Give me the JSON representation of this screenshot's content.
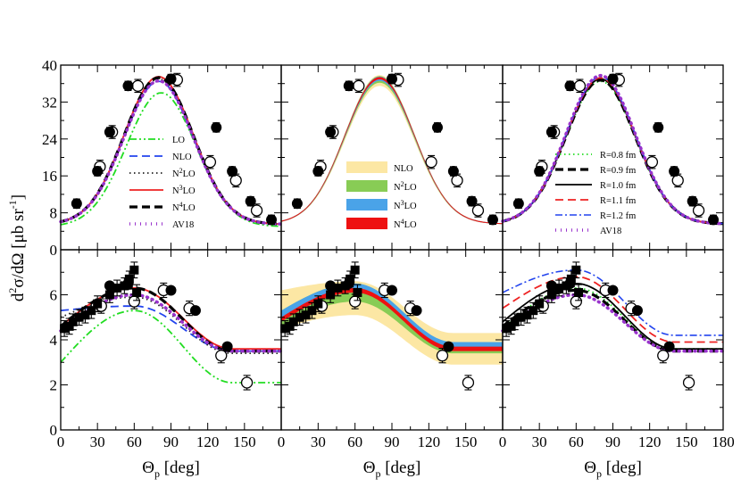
{
  "chart_data": {
    "type": "line",
    "ylabel": "d²σ/dΩ [μb sr⁻¹]",
    "ylabel_parts": {
      "d": "d",
      "sup2": "2",
      "body": "σ/dΩ [μb sr",
      "supm1": "-1",
      "close": "]"
    },
    "xlabel_parts": {
      "theta": "Θ",
      "sub": "p",
      "unit": " [deg]"
    },
    "xlim": [
      0,
      180
    ],
    "xticks": [
      0,
      30,
      60,
      90,
      120,
      150
    ],
    "xticks_last": [
      0,
      30,
      60,
      90,
      120,
      150,
      180
    ],
    "top_ylim": [
      0,
      40
    ],
    "top_yticks": [
      0,
      8,
      16,
      24,
      32,
      40
    ],
    "bottom_ylim": [
      0,
      8
    ],
    "bottom_yticks": [
      0,
      2,
      4,
      6
    ],
    "colors": {
      "LO": "#22dd22",
      "NLO": "#2244ee",
      "N2LO": "#222222",
      "N3LO": "#ee2222",
      "N4LO": "#000000",
      "AV18": "#9933cc",
      "R08": "#22dd22",
      "R09": "#000000",
      "R10": "#000000",
      "R11": "#ee2222",
      "R12": "#2244ee",
      "band_NLO": "#fce7a4",
      "band_N2LO": "#88cc55",
      "band_N3LO": "#4aa3e8",
      "band_N4LO": "#ee1111"
    },
    "legend_left": [
      {
        "key": "LO",
        "parts": [
          "LO",
          "",
          ""
        ],
        "style": "dashdotdot"
      },
      {
        "key": "NLO",
        "parts": [
          "NLO",
          "",
          ""
        ],
        "style": "dash"
      },
      {
        "key": "N2LO",
        "parts": [
          "N",
          "2",
          "LO"
        ],
        "style": "dot"
      },
      {
        "key": "N3LO",
        "parts": [
          "N",
          "3",
          "LO"
        ],
        "style": "solid"
      },
      {
        "key": "N4LO",
        "parts": [
          "N",
          "4",
          "LO"
        ],
        "style": "bolddash"
      },
      {
        "key": "AV18",
        "parts": [
          "AV18",
          "",
          ""
        ],
        "style": "bolddot"
      }
    ],
    "legend_middle": [
      {
        "key": "band_NLO",
        "parts": [
          "NLO",
          "",
          ""
        ]
      },
      {
        "key": "band_N2LO",
        "parts": [
          "N",
          "2",
          "LO"
        ]
      },
      {
        "key": "band_N3LO",
        "parts": [
          "N",
          "3",
          "LO"
        ]
      },
      {
        "key": "band_N4LO",
        "parts": [
          "N",
          "4",
          "LO"
        ]
      }
    ],
    "legend_right": [
      {
        "key": "R08",
        "label": "R=0.8 fm",
        "style": "dot"
      },
      {
        "key": "R09",
        "label": "R=0.9 fm",
        "style": "bolddash"
      },
      {
        "key": "R10",
        "label": "R=1.0 fm",
        "style": "solid"
      },
      {
        "key": "R11",
        "label": "R=1.1 fm",
        "style": "dash"
      },
      {
        "key": "R12",
        "label": "R=1.2 fm",
        "style": "dashdot"
      },
      {
        "key": "AV18",
        "label": "AV18",
        "style": "bolddot"
      }
    ],
    "data_top_filled": [
      [
        13,
        10
      ],
      [
        30,
        17
      ],
      [
        40,
        25.5
      ],
      [
        55,
        35.5
      ],
      [
        90,
        37
      ],
      [
        127,
        26.5
      ],
      [
        140,
        17
      ],
      [
        155,
        10.5
      ],
      [
        172,
        6.5
      ]
    ],
    "data_top_open": [
      [
        32,
        18
      ],
      [
        42,
        25.5
      ],
      [
        63,
        35.5
      ],
      [
        95,
        36.8
      ],
      [
        122,
        19
      ],
      [
        143,
        15
      ],
      [
        160,
        8.5
      ]
    ],
    "data_bottom_filled_circle": [
      [
        40,
        6.4
      ],
      [
        55,
        6.5
      ],
      [
        90,
        6.2
      ],
      [
        110,
        5.3
      ],
      [
        136,
        3.7
      ]
    ],
    "data_bottom_open_circle": [
      [
        33,
        5.5
      ],
      [
        60,
        5.7
      ],
      [
        84,
        6.2
      ],
      [
        105,
        5.4
      ],
      [
        131,
        3.3
      ],
      [
        152,
        2.1
      ]
    ],
    "data_bottom_squares": [
      [
        3,
        4.5
      ],
      [
        7,
        4.6
      ],
      [
        10,
        4.8
      ],
      [
        15,
        5.0
      ],
      [
        20,
        5.1
      ],
      [
        25,
        5.3
      ],
      [
        30,
        5.6
      ],
      [
        40,
        6.0
      ],
      [
        46,
        6.3
      ],
      [
        52,
        6.4
      ],
      [
        56,
        6.7
      ],
      [
        60,
        7.1
      ],
      [
        62,
        6.1
      ]
    ],
    "top_curves": {
      "LO": {
        "peak": 34.0,
        "center": 82,
        "width": 40,
        "base": 5.0
      },
      "NLO": {
        "peak": 36.5,
        "center": 80,
        "width": 40,
        "base": 5.5
      },
      "N2LO": {
        "peak": 37.0,
        "center": 80,
        "width": 40,
        "base": 5.5
      },
      "N3LO": {
        "peak": 37.5,
        "center": 80,
        "width": 40,
        "base": 5.5
      },
      "N4LO": {
        "peak": 37.3,
        "center": 80,
        "width": 40,
        "base": 5.5
      },
      "AV18": {
        "peak": 36.6,
        "center": 80,
        "width": 40,
        "base": 5.5
      }
    },
    "bottom_curves": {
      "LO": {
        "low": 3.0,
        "peak": 5.3,
        "end": 2.1
      },
      "NLO": {
        "low": 5.3,
        "peak": 5.5,
        "end": 3.5
      },
      "N2LO": {
        "low": 5.0,
        "peak": 5.9,
        "end": 3.4
      },
      "N3LO": {
        "low": 4.6,
        "peak": 6.3,
        "end": 3.6
      },
      "N4LO": {
        "low": 4.6,
        "peak": 6.3,
        "end": 3.5
      },
      "AV18": {
        "low": 4.4,
        "peak": 6.0,
        "end": 3.5
      }
    },
    "bottom_r_curves": {
      "R08": {
        "low": 4.5,
        "peak": 6.3,
        "end": 3.6
      },
      "R09": {
        "low": 4.6,
        "peak": 6.2,
        "end": 3.5
      },
      "R10": {
        "low": 4.8,
        "peak": 6.5,
        "end": 3.6
      },
      "R11": {
        "low": 5.4,
        "peak": 6.8,
        "end": 3.9
      },
      "R12": {
        "low": 6.1,
        "peak": 7.1,
        "end": 4.2
      },
      "AV18": {
        "low": 4.4,
        "peak": 6.0,
        "end": 3.5
      }
    },
    "bands": {
      "band_NLO": {
        "lo_low": 4.5,
        "lo_peak": 5.1,
        "lo_end": 2.9,
        "hi_low": 6.2,
        "hi_peak": 6.6,
        "hi_end": 4.3
      },
      "band_N2LO": {
        "lo_low": 4.6,
        "lo_peak": 5.7,
        "lo_end": 3.4,
        "hi_low": 5.3,
        "hi_peak": 6.5,
        "hi_end": 3.8
      },
      "band_N3LO": {
        "lo_low": 4.8,
        "lo_peak": 6.1,
        "lo_end": 3.6,
        "hi_low": 5.3,
        "hi_peak": 6.5,
        "hi_end": 3.9
      },
      "band_N4LO": {
        "lo_low": 4.8,
        "lo_peak": 6.1,
        "lo_end": 3.5,
        "hi_low": 5.0,
        "hi_peak": 6.3,
        "hi_end": 3.7
      }
    }
  }
}
